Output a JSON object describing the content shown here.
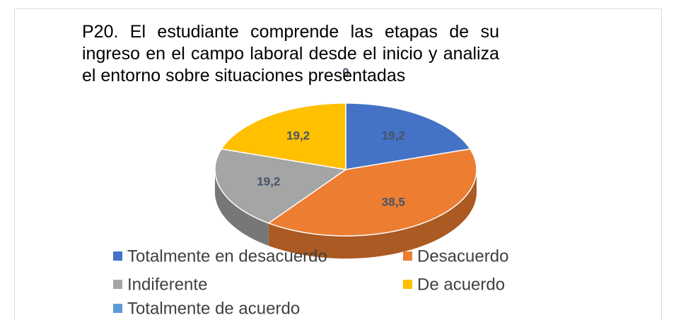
{
  "chart_data": {
    "type": "pie",
    "title": "P20.  El estudiante comprende las etapas de su ingreso en el campo laboral desde el inicio y analiza el entorno sobre situaciones presentadas",
    "categories": [
      "Totalmente en desacuerdo",
      "Desacuerdo",
      "Indiferente",
      "De acuerdo",
      "Totalmente de acuerdo"
    ],
    "values": [
      19.2,
      38.5,
      19.2,
      19.2,
      0
    ],
    "value_labels": [
      "19,2",
      "38,5",
      "19,2",
      "19,2",
      "0"
    ],
    "colors": [
      "#4472c4",
      "#ed7d31",
      "#a5a5a5",
      "#ffc000",
      "#5b9bd5"
    ],
    "legend": "bottom"
  }
}
